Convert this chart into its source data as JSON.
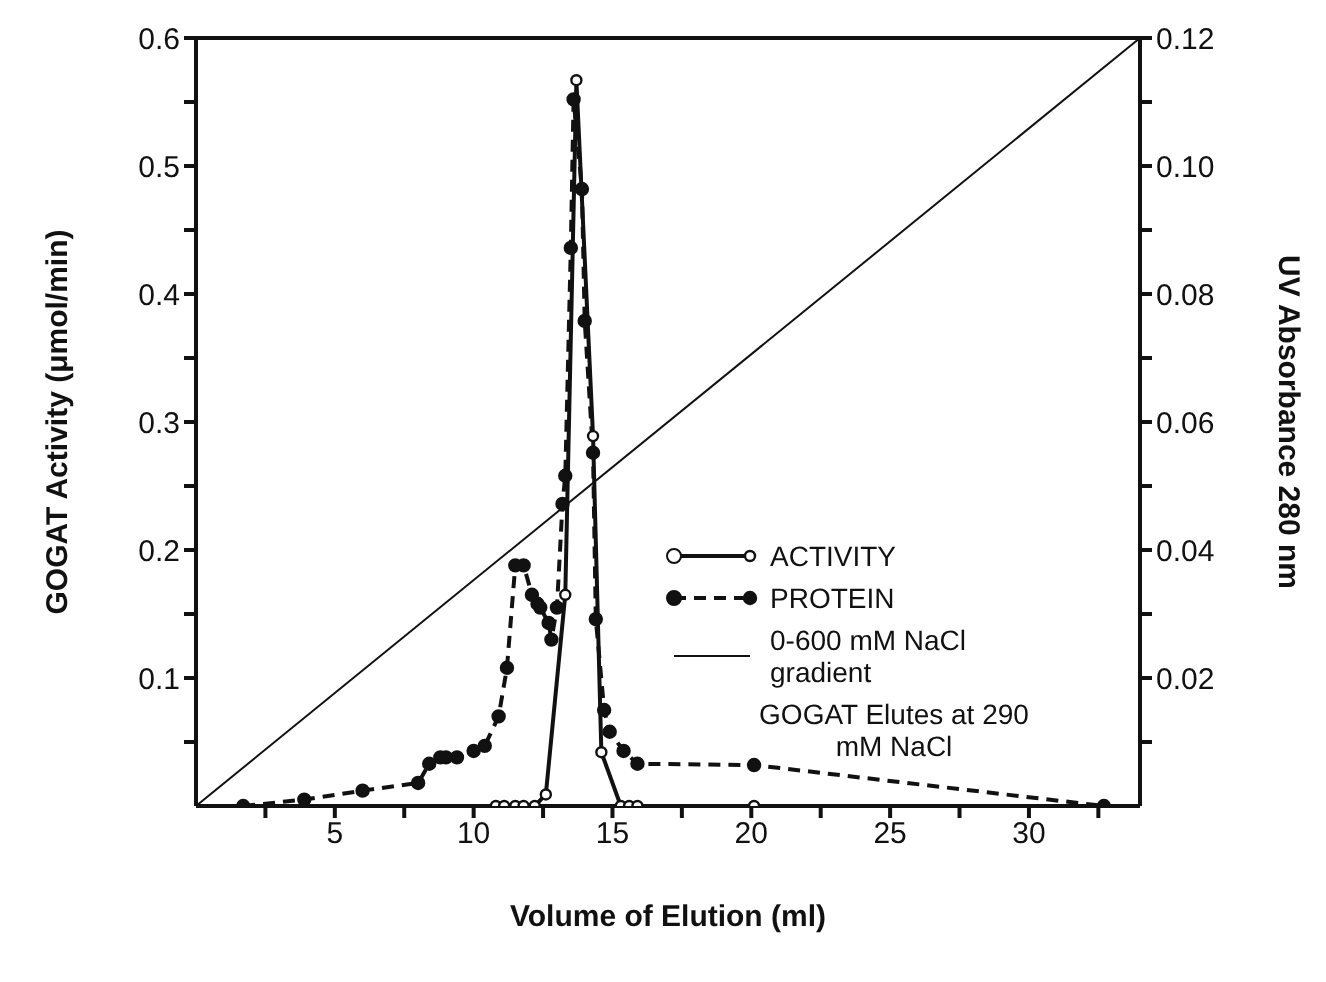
{
  "chart_data": {
    "type": "line",
    "xlabel": "Volume of Elution (ml)",
    "ylabel": "GOGAT Activity (μmol/min)",
    "y2label": "UV Absorbance 280 nm",
    "xlim": [
      0,
      34
    ],
    "ylim": [
      0,
      0.6
    ],
    "y2lim": [
      0,
      0.12
    ],
    "xticks": [
      {
        "value": 2.5,
        "label": null
      },
      5,
      {
        "value": 7.5,
        "label": null
      },
      10,
      {
        "value": 12.5,
        "label": null
      },
      15,
      {
        "value": 17.5,
        "label": null
      },
      20,
      {
        "value": 22.5,
        "label": null
      },
      25,
      {
        "value": 27.5,
        "label": null
      },
      30,
      {
        "value": 32.5,
        "label": null
      }
    ],
    "yticks": [
      {
        "value": 0.05,
        "label": null
      },
      0.1,
      {
        "value": 0.15,
        "label": null
      },
      0.2,
      {
        "value": 0.25,
        "label": null
      },
      0.3,
      {
        "value": 0.35,
        "label": null
      },
      0.4,
      {
        "value": 0.45,
        "label": null
      },
      0.5,
      {
        "value": 0.55,
        "label": null
      },
      0.6
    ],
    "y2ticks": [
      {
        "value": 0.01,
        "label": null
      },
      0.02,
      {
        "value": 0.03,
        "label": null
      },
      0.04,
      {
        "value": 0.05,
        "label": null
      },
      0.06,
      {
        "value": 0.07,
        "label": null
      },
      0.08,
      {
        "value": 0.09,
        "label": null
      },
      {
        "value": 0.1,
        "label": "0.10"
      },
      {
        "value": 0.11,
        "label": null
      },
      0.12
    ],
    "legend": "right",
    "annotations": [
      "GOGAT Elutes at 290 mM NaCl"
    ],
    "series": [
      {
        "name": "ACTIVITY",
        "color": "#111111",
        "marker": "circle",
        "line_style": "solid",
        "x": [
          10.8,
          11.1,
          11.5,
          11.8,
          12.2,
          12.6,
          13.3,
          13.7,
          14.3,
          14.6,
          15.3,
          15.6,
          15.9,
          20.1
        ],
        "values": [
          0,
          0,
          0,
          0,
          0,
          0.009,
          0.165,
          0.567,
          0.289,
          0.042,
          0,
          0,
          0,
          0
        ]
      },
      {
        "name": "PROTEIN",
        "color": "#111111",
        "marker": "circle",
        "line_style": "dashed",
        "axis": "y2",
        "x": [
          1.7,
          3.9,
          6.0,
          8.0,
          8.4,
          8.8,
          9.0,
          9.4,
          10.0,
          10.4,
          10.9,
          11.2,
          11.5,
          11.8,
          12.1,
          12.3,
          12.4,
          12.7,
          12.8,
          13.0,
          13.2,
          13.3,
          13.5,
          13.6,
          13.9,
          14.0,
          14.3,
          14.4,
          14.7,
          14.9,
          15.4,
          15.9,
          20.1,
          32.7
        ],
        "values": [
          0,
          0.001,
          0.0024,
          0.0036,
          0.0066,
          0.0076,
          0.0076,
          0.0076,
          0.0086,
          0.0094,
          0.014,
          0.0216,
          0.0376,
          0.0376,
          0.033,
          0.0316,
          0.031,
          0.0286,
          0.026,
          0.031,
          0.0472,
          0.0516,
          0.0872,
          0.1104,
          0.0964,
          0.0758,
          0.0552,
          0.0292,
          0.015,
          0.0116,
          0.0086,
          0.0066,
          0.0064,
          0
        ]
      },
      {
        "name": "0-600 mM NaCl gradient",
        "color": "#111111",
        "marker": "none",
        "line_style": "solid",
        "x": [
          0,
          34
        ],
        "values": [
          0,
          0.6
        ]
      }
    ]
  }
}
